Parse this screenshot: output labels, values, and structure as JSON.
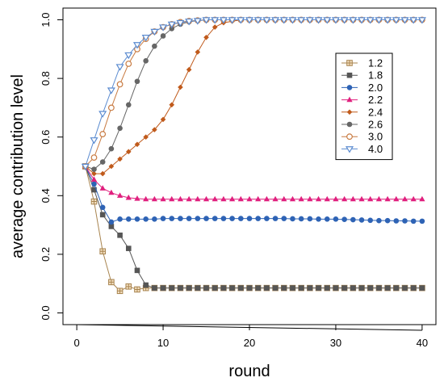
{
  "chart_data": {
    "type": "line",
    "title": "",
    "xlabel": "round",
    "ylabel": "average contribution level",
    "xlim": [
      0,
      40
    ],
    "ylim": [
      0.0,
      1.0
    ],
    "xticks": [
      0,
      10,
      20,
      30,
      40
    ],
    "yticks": [
      0.0,
      0.2,
      0.4,
      0.6,
      0.8,
      1.0
    ],
    "xtick_labels": [
      "0",
      "10",
      "20",
      "30",
      "40"
    ],
    "ytick_labels": [
      "0.0",
      "0.2",
      "0.4",
      "0.6",
      "0.8",
      "1.0"
    ],
    "grid": false,
    "legend_position": "top-right",
    "x": [
      1,
      2,
      3,
      4,
      5,
      6,
      7,
      8,
      9,
      10,
      11,
      12,
      13,
      14,
      15,
      16,
      17,
      18,
      19,
      20,
      21,
      22,
      23,
      24,
      25,
      26,
      27,
      28,
      29,
      30,
      31,
      32,
      33,
      34,
      35,
      36,
      37,
      38,
      39,
      40
    ],
    "series": [
      {
        "name": "1.2",
        "color": "#a8844f",
        "marker": "square-cross",
        "values": [
          0.5,
          0.38,
          0.21,
          0.105,
          0.075,
          0.09,
          0.08,
          0.085,
          0.085,
          0.085,
          0.085,
          0.085,
          0.085,
          0.085,
          0.085,
          0.085,
          0.085,
          0.085,
          0.085,
          0.085,
          0.085,
          0.085,
          0.085,
          0.085,
          0.085,
          0.085,
          0.085,
          0.085,
          0.085,
          0.085,
          0.085,
          0.085,
          0.085,
          0.085,
          0.085,
          0.085,
          0.085,
          0.085,
          0.085,
          0.085
        ]
      },
      {
        "name": "1.8",
        "color": "#565656",
        "marker": "square",
        "values": [
          0.5,
          0.42,
          0.335,
          0.295,
          0.265,
          0.22,
          0.145,
          0.095,
          0.085,
          0.085,
          0.085,
          0.085,
          0.085,
          0.085,
          0.085,
          0.085,
          0.085,
          0.085,
          0.085,
          0.085,
          0.085,
          0.085,
          0.085,
          0.085,
          0.085,
          0.085,
          0.085,
          0.085,
          0.085,
          0.085,
          0.085,
          0.085,
          0.085,
          0.085,
          0.085,
          0.085,
          0.085,
          0.085,
          0.085,
          0.085
        ]
      },
      {
        "name": "2.0",
        "color": "#2e63b5",
        "marker": "circle",
        "values": [
          0.5,
          0.44,
          0.36,
          0.31,
          0.32,
          0.32,
          0.32,
          0.32,
          0.32,
          0.322,
          0.322,
          0.322,
          0.322,
          0.322,
          0.322,
          0.322,
          0.322,
          0.322,
          0.322,
          0.322,
          0.322,
          0.322,
          0.322,
          0.322,
          0.321,
          0.321,
          0.321,
          0.32,
          0.32,
          0.32,
          0.319,
          0.318,
          0.317,
          0.316,
          0.315,
          0.315,
          0.314,
          0.314,
          0.313,
          0.313
        ]
      },
      {
        "name": "2.2",
        "color": "#e0207e",
        "marker": "triangle-up",
        "values": [
          0.5,
          0.455,
          0.425,
          0.41,
          0.4,
          0.393,
          0.39,
          0.388,
          0.388,
          0.388,
          0.388,
          0.388,
          0.388,
          0.388,
          0.388,
          0.388,
          0.388,
          0.388,
          0.388,
          0.388,
          0.388,
          0.388,
          0.388,
          0.388,
          0.388,
          0.388,
          0.388,
          0.388,
          0.388,
          0.388,
          0.388,
          0.388,
          0.388,
          0.388,
          0.388,
          0.388,
          0.388,
          0.388,
          0.388,
          0.388
        ]
      },
      {
        "name": "2.4",
        "color": "#c05a1b",
        "marker": "diamond",
        "values": [
          0.5,
          0.475,
          0.475,
          0.5,
          0.525,
          0.55,
          0.575,
          0.6,
          0.625,
          0.66,
          0.71,
          0.77,
          0.83,
          0.89,
          0.94,
          0.975,
          0.99,
          0.995,
          1.0,
          1.0,
          1.0,
          1.0,
          1.0,
          1.0,
          1.0,
          1.0,
          1.0,
          1.0,
          1.0,
          1.0,
          1.0,
          1.0,
          1.0,
          1.0,
          1.0,
          1.0,
          1.0,
          1.0,
          1.0,
          1.0
        ]
      },
      {
        "name": "2.6",
        "color": "#666666",
        "marker": "circle",
        "values": [
          0.5,
          0.49,
          0.515,
          0.56,
          0.63,
          0.71,
          0.79,
          0.86,
          0.91,
          0.945,
          0.97,
          0.985,
          0.993,
          0.997,
          1.0,
          1.0,
          1.0,
          1.0,
          1.0,
          1.0,
          1.0,
          1.0,
          1.0,
          1.0,
          1.0,
          1.0,
          1.0,
          1.0,
          1.0,
          1.0,
          1.0,
          1.0,
          1.0,
          1.0,
          1.0,
          1.0,
          1.0,
          1.0,
          1.0,
          1.0
        ]
      },
      {
        "name": "3.0",
        "color": "#c87b42",
        "marker": "circle-open",
        "values": [
          0.5,
          0.53,
          0.61,
          0.7,
          0.78,
          0.85,
          0.9,
          0.935,
          0.96,
          0.975,
          0.985,
          0.992,
          0.996,
          0.998,
          1.0,
          1.0,
          1.0,
          1.0,
          1.0,
          1.0,
          1.0,
          1.0,
          1.0,
          1.0,
          1.0,
          1.0,
          1.0,
          1.0,
          1.0,
          1.0,
          1.0,
          1.0,
          1.0,
          1.0,
          1.0,
          1.0,
          1.0,
          1.0,
          1.0,
          1.0
        ]
      },
      {
        "name": "4.0",
        "color": "#5b8bd0",
        "marker": "triangle-down-open",
        "values": [
          0.5,
          0.59,
          0.68,
          0.76,
          0.84,
          0.88,
          0.915,
          0.94,
          0.96,
          0.975,
          0.985,
          0.99,
          0.995,
          0.997,
          1.0,
          1.0,
          1.0,
          1.0,
          1.0,
          1.0,
          1.0,
          1.0,
          1.0,
          1.0,
          1.0,
          1.0,
          1.0,
          1.0,
          1.0,
          1.0,
          1.0,
          1.0,
          1.0,
          1.0,
          1.0,
          1.0,
          1.0,
          1.0,
          1.0,
          1.0
        ]
      }
    ]
  }
}
